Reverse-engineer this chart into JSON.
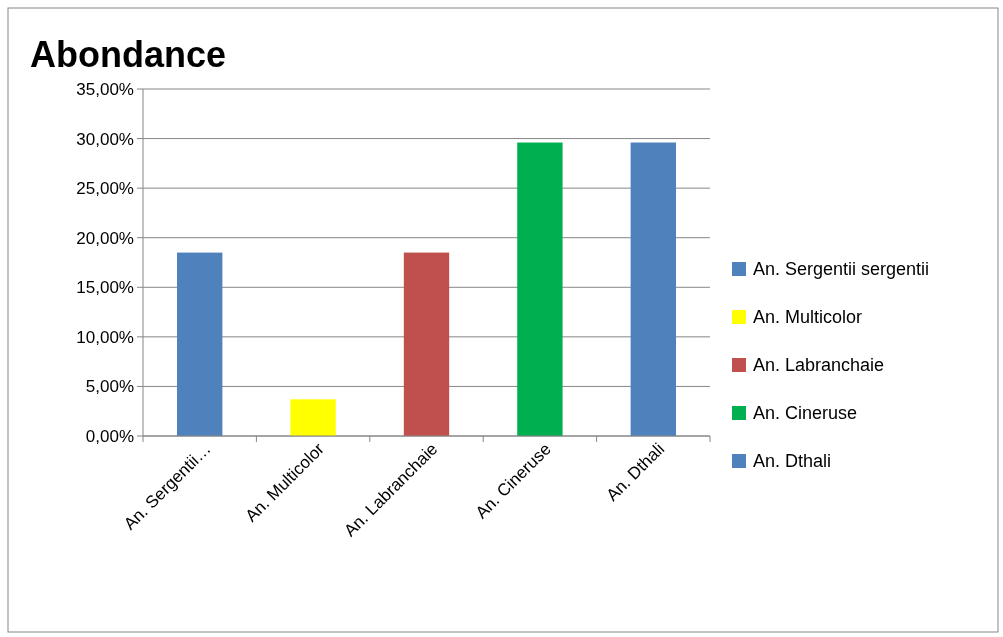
{
  "chart_data": {
    "type": "bar",
    "title": "Abondance",
    "stacked": true,
    "categories": [
      "An. Sergentii…",
      "An. Multicolor",
      "An. Labranchaie",
      "An. Cineruse",
      "An. Dthali"
    ],
    "series": [
      {
        "name": "An. Sergentii sergentii",
        "color": "#4f81bd",
        "values": [
          18.5,
          null,
          null,
          null,
          null
        ]
      },
      {
        "name": "An. Multicolor",
        "color": "#ffff00",
        "values": [
          null,
          3.7,
          null,
          null,
          null
        ]
      },
      {
        "name": "An. Labranchaie",
        "color": "#c0504d",
        "values": [
          null,
          null,
          18.5,
          null,
          null
        ]
      },
      {
        "name": "An. Cineruse",
        "color": "#00b050",
        "values": [
          null,
          null,
          null,
          29.6,
          null
        ]
      },
      {
        "name": "An. Dthali",
        "color": "#4f81bd",
        "values": [
          null,
          null,
          null,
          null,
          29.6
        ]
      }
    ],
    "ylim": [
      0,
      35
    ],
    "yticks": [
      {
        "value": 0,
        "label": "0,00%"
      },
      {
        "value": 5,
        "label": "5,00%"
      },
      {
        "value": 10,
        "label": "10,00%"
      },
      {
        "value": 15,
        "label": "15,00%"
      },
      {
        "value": 20,
        "label": "20,00%"
      },
      {
        "value": 25,
        "label": "25,00%"
      },
      {
        "value": 30,
        "label": "30,00%"
      },
      {
        "value": 35,
        "label": "35,00%"
      }
    ],
    "grid": "y",
    "legend": "right"
  }
}
